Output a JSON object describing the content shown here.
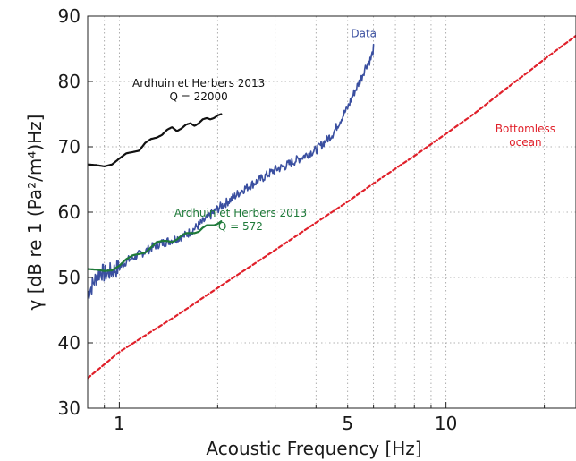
{
  "chart_data": {
    "type": "line",
    "xlabel": "Acoustic Frequency [Hz]",
    "ylabel": "γ [dB re 1 (Pa²/m⁴)Hz]",
    "xscale": "log",
    "xlim": [
      0.8,
      25
    ],
    "ylim": [
      30,
      90
    ],
    "grid": true,
    "x_ticks": [
      {
        "value": 1,
        "label": "1"
      },
      {
        "value": 5,
        "label": "5"
      },
      {
        "value": 10,
        "label": "10"
      }
    ],
    "y_ticks": [
      30,
      40,
      50,
      60,
      70,
      80,
      90
    ],
    "series": [
      {
        "name": "Data",
        "color": "#3a4fa0",
        "style": "solid",
        "x": [
          0.8,
          0.82,
          0.85,
          0.88,
          0.9,
          0.95,
          1.0,
          1.05,
          1.1,
          1.15,
          1.2,
          1.3,
          1.4,
          1.5,
          1.6,
          1.7,
          1.8,
          1.9,
          2.0,
          2.2,
          2.4,
          2.6,
          2.8,
          3.0,
          3.2,
          3.5,
          3.8,
          4.0,
          4.2,
          4.5,
          4.8,
          5.0,
          5.2,
          5.5,
          5.7,
          5.9,
          6.0
        ],
        "y": [
          47.5,
          48.5,
          50.0,
          51.0,
          50.5,
          51.0,
          51.5,
          52.5,
          53.0,
          53.5,
          54.0,
          55.0,
          55.5,
          56.0,
          56.5,
          57.5,
          58.5,
          59.5,
          60.5,
          62.0,
          63.5,
          64.5,
          65.5,
          66.5,
          67.0,
          68.0,
          69.0,
          69.5,
          70.5,
          72.0,
          74.5,
          76.0,
          78.0,
          80.5,
          82.5,
          83.5,
          85.0
        ],
        "label": "Data",
        "label_color": "#3a4fa0"
      },
      {
        "name": "Ardhuin et Herbers 2013 Q = 22000",
        "color": "#111111",
        "style": "solid",
        "x": [
          0.8,
          0.85,
          0.9,
          0.95,
          1.0,
          1.05,
          1.1,
          1.15,
          1.2,
          1.25,
          1.3,
          1.35,
          1.4,
          1.45,
          1.5,
          1.55,
          1.6,
          1.65,
          1.7,
          1.75,
          1.8,
          1.85,
          1.9,
          1.95,
          2.0,
          2.05
        ],
        "y": [
          67.3,
          67.2,
          67.0,
          67.3,
          68.2,
          69.0,
          69.2,
          69.4,
          70.6,
          71.2,
          71.4,
          71.8,
          72.6,
          73.0,
          72.4,
          72.8,
          73.4,
          73.6,
          73.2,
          73.6,
          74.2,
          74.4,
          74.2,
          74.4,
          74.8,
          75.0
        ]
      },
      {
        "name": "Ardhuin et Herbers 2013 Q = 572",
        "color": "#1f7a3a",
        "style": "solid",
        "x": [
          0.8,
          0.85,
          0.9,
          0.95,
          1.0,
          1.05,
          1.1,
          1.15,
          1.2,
          1.25,
          1.3,
          1.35,
          1.4,
          1.45,
          1.5,
          1.55,
          1.6,
          1.65,
          1.7,
          1.75,
          1.8,
          1.85,
          1.9,
          1.95,
          2.0,
          2.05
        ],
        "y": [
          51.3,
          51.2,
          51.0,
          51.1,
          51.8,
          52.8,
          53.4,
          53.6,
          53.8,
          54.6,
          55.4,
          55.6,
          55.6,
          55.4,
          55.8,
          56.4,
          56.8,
          56.8,
          56.8,
          57.0,
          57.6,
          58.0,
          58.0,
          58.0,
          58.2,
          58.6
        ]
      },
      {
        "name": "Bottomless ocean",
        "color": "#e0202a",
        "style": "dashed",
        "x": [
          0.8,
          1.0,
          1.5,
          2.0,
          3.0,
          4.0,
          5.0,
          6.0,
          8.0,
          10.0,
          12.0,
          15.0,
          18.0,
          20.0,
          25.0
        ],
        "y": [
          34.6,
          38.6,
          44.2,
          48.4,
          54.2,
          58.4,
          61.6,
          64.4,
          68.6,
          72.0,
          74.8,
          78.6,
          81.6,
          83.4,
          87.0
        ]
      }
    ],
    "annotations": [
      {
        "lines": [
          "Data"
        ],
        "x": 5.6,
        "y": 86.8,
        "color": "#3a4fa0",
        "anchor": "middle"
      },
      {
        "lines": [
          "Ardhuin et Herbers 2013",
          "Q = 22000"
        ],
        "x": 1.75,
        "y": 79.2,
        "color": "#111111",
        "anchor": "middle"
      },
      {
        "lines": [
          "Ardhuin et Herbers 2013",
          "Q = 572"
        ],
        "x": 2.35,
        "y": 59.3,
        "color": "#1f7a3a",
        "anchor": "middle"
      },
      {
        "lines": [
          "Bottomless",
          "ocean"
        ],
        "x": 17.5,
        "y": 72.2,
        "color": "#e0202a",
        "anchor": "middle"
      }
    ]
  }
}
